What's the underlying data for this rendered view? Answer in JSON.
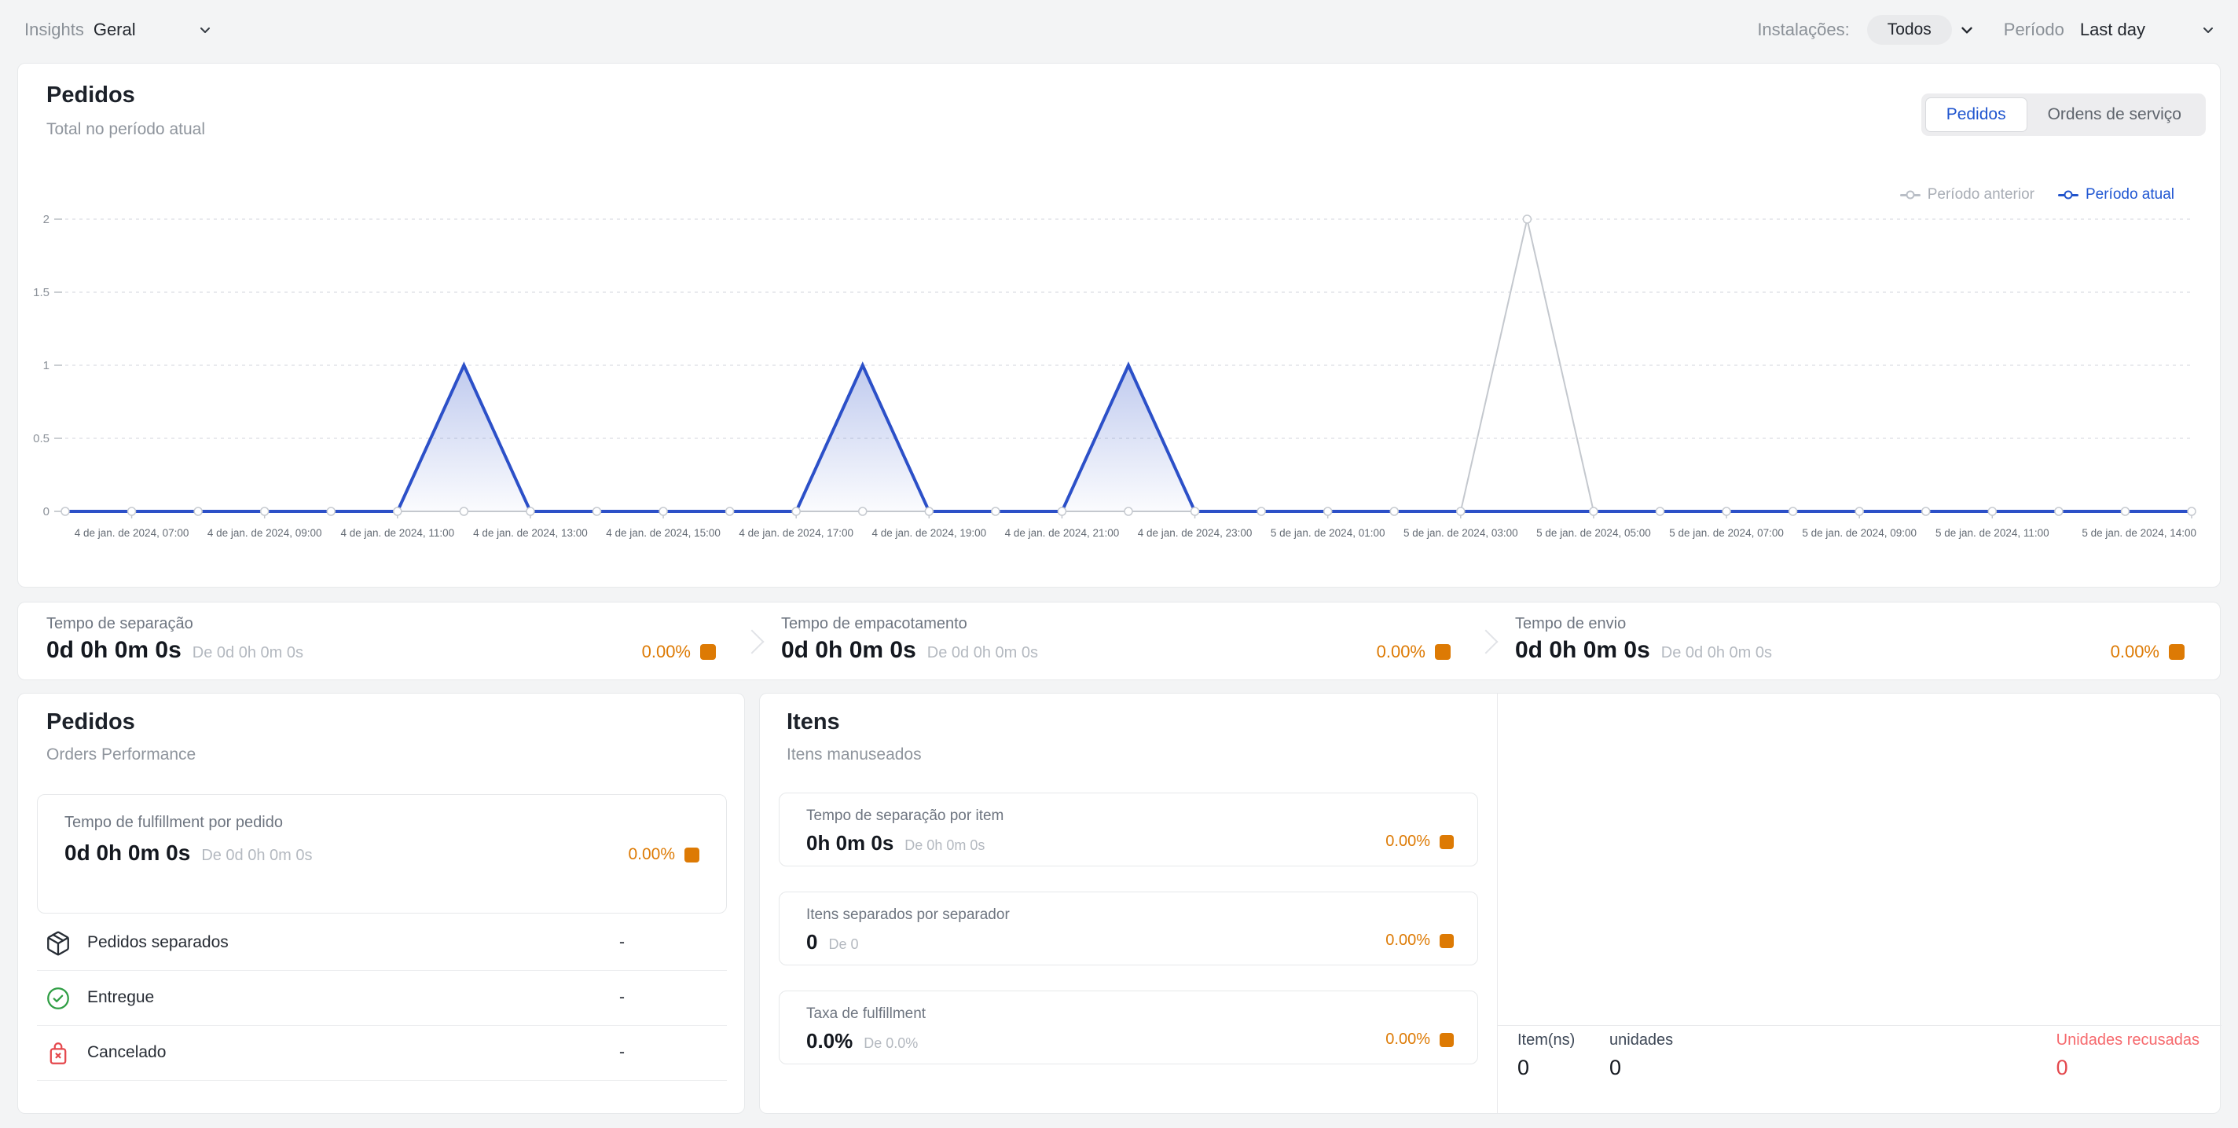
{
  "colors": {
    "accent_orange": "#dd7a04",
    "series_current_blue": "#2c50c8",
    "series_previous_gray": "#c4c8ce",
    "status_red": "#e4494e",
    "status_green": "#2f9e44"
  },
  "topbar": {
    "insights_label": "Insights",
    "insights_value": "Geral",
    "installations_label": "Instalações:",
    "installations_value": "Todos",
    "period_label": "Período",
    "period_value": "Last day"
  },
  "orders_chart_card": {
    "title": "Pedidos",
    "subtitle": "Total no período atual",
    "tabs": [
      {
        "label": "Pedidos",
        "active": true
      },
      {
        "label": "Ordens de serviço",
        "active": false
      }
    ],
    "legend": [
      {
        "label": "Período anterior"
      },
      {
        "label": "Período atual"
      }
    ]
  },
  "chart_data": {
    "type": "area",
    "title": "Pedidos",
    "x_start_label": "4 de jan. de 2024, 06:00",
    "interval_hours": 1,
    "num_points": 33,
    "tick_labels": [
      "4 de jan. de 2024, 07:00",
      "4 de jan. de 2024, 09:00",
      "4 de jan. de 2024, 11:00",
      "4 de jan. de 2024, 13:00",
      "4 de jan. de 2024, 15:00",
      "4 de jan. de 2024, 17:00",
      "4 de jan. de 2024, 19:00",
      "4 de jan. de 2024, 21:00",
      "4 de jan. de 2024, 23:00",
      "5 de jan. de 2024, 01:00",
      "5 de jan. de 2024, 03:00",
      "5 de jan. de 2024, 05:00",
      "5 de jan. de 2024, 07:00",
      "5 de jan. de 2024, 09:00",
      "5 de jan. de 2024, 11:00",
      "5 de jan. de 2024, 14:00"
    ],
    "tick_indices": [
      1,
      3,
      5,
      7,
      9,
      11,
      13,
      15,
      17,
      19,
      21,
      23,
      25,
      27,
      29,
      32
    ],
    "yticks": [
      0,
      0.5,
      1,
      1.5,
      2
    ],
    "ylim": [
      0,
      2
    ],
    "grid": true,
    "legend_position": "top-right",
    "series": [
      {
        "name": "Período anterior",
        "color": "#c4c8ce",
        "values": [
          0,
          0,
          0,
          0,
          0,
          0,
          0,
          0,
          0,
          0,
          0,
          0,
          0,
          0,
          0,
          0,
          0,
          0,
          0,
          0,
          0,
          0,
          2,
          0,
          0,
          0,
          0,
          0,
          0,
          0,
          0,
          0,
          0
        ]
      },
      {
        "name": "Período atual",
        "color": "#2c50c8",
        "values": [
          0,
          0,
          0,
          0,
          0,
          0,
          1,
          0,
          0,
          0,
          0,
          0,
          1,
          0,
          0,
          0,
          1,
          0,
          0,
          0,
          0,
          0,
          0,
          0,
          0,
          0,
          0,
          0,
          0,
          0,
          0,
          0,
          0
        ]
      }
    ]
  },
  "kpis": [
    {
      "label": "Tempo de separação",
      "value": "0d 0h 0m 0s",
      "compare": "De 0d 0h 0m 0s",
      "percent": "0.00%"
    },
    {
      "label": "Tempo de empacotamento",
      "value": "0d 0h 0m 0s",
      "compare": "De 0d 0h 0m 0s",
      "percent": "0.00%"
    },
    {
      "label": "Tempo de envio",
      "value": "0d 0h 0m 0s",
      "compare": "De 0d 0h 0m 0s",
      "percent": "0.00%"
    }
  ],
  "orders_performance_card": {
    "title": "Pedidos",
    "subtitle": "Orders Performance",
    "metric": {
      "label": "Tempo de fulfillment por pedido",
      "value": "0d 0h 0m 0s",
      "compare": "De 0d 0h 0m 0s",
      "percent": "0.00%"
    },
    "rows": [
      {
        "icon": "package-icon",
        "label": "Pedidos separados",
        "value": "-"
      },
      {
        "icon": "check-circle-icon",
        "label": "Entregue",
        "value": "-"
      },
      {
        "icon": "bag-x-icon",
        "label": "Cancelado",
        "value": "-"
      }
    ]
  },
  "items_card": {
    "title": "Itens",
    "subtitle": "Itens manuseados",
    "metrics": [
      {
        "label": "Tempo de separação por item",
        "value": "0h 0m 0s",
        "compare": "De 0h 0m 0s",
        "percent": "0.00%"
      },
      {
        "label": "Itens separados por separador",
        "value": "0",
        "compare": "De 0",
        "percent": "0.00%"
      },
      {
        "label": "Taxa de fulfillment",
        "value": "0.0%",
        "compare": "De 0.0%",
        "percent": "0.00%"
      }
    ],
    "footer": [
      {
        "label": "Item(ns)",
        "value": "0"
      },
      {
        "label": "unidades",
        "value": "0"
      },
      {
        "label": "Unidades recusadas",
        "value": "0"
      }
    ]
  }
}
